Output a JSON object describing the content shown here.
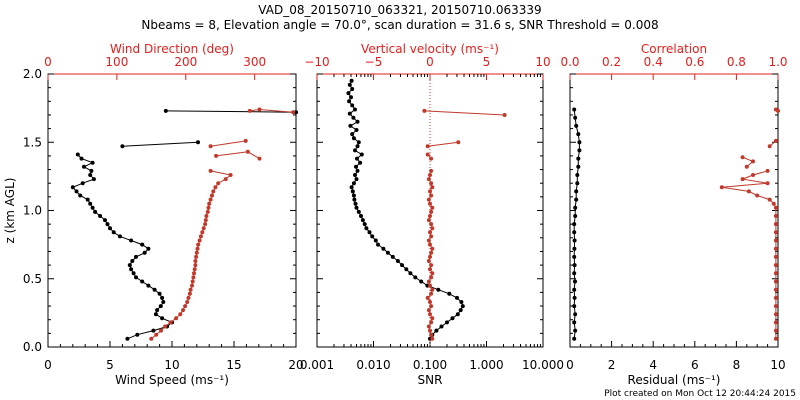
{
  "header": {
    "title_line1": "VAD_08_20150710_063321, 20150710.063339",
    "title_line2": "Nbeams = 8, Elevation angle = 70.0°, scan duration = 31.6 s, SNR Threshold = 0.008",
    "footer": "Plot created on Mon Oct 12 20:44:24 2015"
  },
  "colors": {
    "black": "#000000",
    "red": "#c0392b",
    "axis_red": "#e0201e"
  },
  "chart_data": [
    {
      "type": "line",
      "ylabel": "z (km AGL)",
      "ylim": [
        0,
        2
      ],
      "yticks": [
        "0.0",
        "0.5",
        "1.0",
        "1.5",
        "2.0"
      ],
      "bottom_axis": {
        "label": "Wind Speed (ms⁻¹)",
        "lim": [
          0,
          20
        ],
        "ticks": [
          "0",
          "5",
          "10",
          "15",
          "20"
        ]
      },
      "top_axis": {
        "label": "Wind Direction (deg)",
        "lim": [
          0,
          360
        ],
        "ticks": [
          "0",
          "100",
          "200",
          "300"
        ]
      },
      "series": [
        {
          "axis": "bottom",
          "color": "black",
          "segments": [
            {
              "z": [
                0.06,
                0.09,
                0.12,
                0.15,
                0.18,
                0.21,
                0.24,
                0.27,
                0.3,
                0.33,
                0.36,
                0.39,
                0.42,
                0.45,
                0.48,
                0.51,
                0.54,
                0.57,
                0.6,
                0.63,
                0.66,
                0.69,
                0.72,
                0.75,
                0.78,
                0.81,
                0.84,
                0.87,
                0.9,
                0.93,
                0.96,
                0.99,
                1.02,
                1.05,
                1.08,
                1.11,
                1.14,
                1.17,
                1.2,
                1.23,
                1.26,
                1.29,
                1.32,
                1.35,
                1.38,
                1.41
              ],
              "x": [
                6.4,
                7.2,
                8.5,
                9.6,
                10.0,
                9.2,
                8.7,
                8.8,
                9.1,
                9.3,
                9.2,
                9.0,
                8.6,
                8.1,
                7.6,
                7.1,
                6.9,
                6.7,
                6.6,
                6.8,
                7.1,
                7.8,
                8.1,
                7.6,
                6.7,
                5.8,
                5.3,
                5.0,
                4.8,
                4.6,
                4.2,
                3.8,
                3.6,
                3.4,
                3.2,
                2.6,
                2.3,
                2.0,
                2.8,
                3.7,
                3.4,
                3.5,
                2.9,
                3.6,
                2.7,
                2.4
              ]
            },
            {
              "z": [
                1.47,
                1.5
              ],
              "x": [
                6.0,
                12.1
              ]
            },
            {
              "z": [
                1.73,
                1.72
              ],
              "x": [
                9.5,
                20.0
              ]
            }
          ]
        },
        {
          "axis": "top",
          "color": "red",
          "segments": [
            {
              "z": [
                0.06,
                0.09,
                0.12,
                0.15,
                0.18,
                0.21,
                0.24,
                0.27,
                0.3,
                0.33,
                0.36,
                0.39,
                0.42,
                0.45,
                0.48,
                0.51,
                0.54,
                0.57,
                0.6,
                0.63,
                0.66,
                0.69,
                0.72,
                0.75,
                0.78,
                0.81,
                0.84,
                0.87,
                0.9,
                0.93,
                0.96,
                0.99,
                1.02,
                1.05,
                1.08,
                1.11,
                1.14,
                1.17,
                1.2,
                1.23,
                1.26,
                1.29
              ],
              "x": [
                150,
                157,
                164,
                170,
                178,
                186,
                192,
                196,
                199,
                202,
                204,
                206,
                207,
                209,
                210,
                211,
                212,
                213,
                214,
                214,
                215,
                216,
                217,
                218,
                220,
                222,
                224,
                226,
                228,
                229,
                230,
                232,
                233,
                234,
                236,
                238,
                240,
                243,
                247,
                258,
                265,
                236
              ]
            },
            {
              "z": [
                1.4,
                1.43,
                1.38
              ],
              "x": [
                244,
                290,
                307
              ]
            },
            {
              "z": [
                1.47,
                1.51
              ],
              "x": [
                236,
                287
              ]
            },
            {
              "z": [
                1.73,
                1.74,
                1.72
              ],
              "x": [
                293,
                307,
                356
              ]
            }
          ]
        }
      ]
    },
    {
      "type": "line",
      "bottom_axis": {
        "label": "SNR",
        "scale": "log",
        "lim": [
          0.001,
          10
        ],
        "ticks": [
          "0.001",
          "0.010",
          "0.100",
          "1.000",
          "10.000"
        ]
      },
      "top_axis": {
        "label": "Vertical velocity (ms⁻¹)",
        "lim": [
          -10,
          10
        ],
        "ticks": [
          "−10",
          "−5",
          "0",
          "5",
          "10"
        ]
      },
      "series": [
        {
          "axis": "bottom",
          "color": "black",
          "segments": [
            {
              "z": [
                0.06,
                0.09,
                0.12,
                0.15,
                0.18,
                0.21,
                0.24,
                0.27,
                0.3,
                0.33,
                0.36,
                0.39,
                0.42,
                0.45,
                0.48,
                0.51,
                0.54,
                0.57,
                0.6,
                0.63,
                0.66,
                0.69,
                0.72,
                0.75,
                0.78,
                0.81,
                0.84,
                0.87,
                0.9,
                0.93,
                0.96,
                0.99,
                1.02,
                1.05,
                1.08,
                1.11,
                1.14,
                1.17,
                1.2,
                1.23,
                1.26,
                1.29,
                1.32,
                1.35,
                1.38,
                1.41,
                1.44,
                1.47,
                1.5,
                1.53,
                1.56,
                1.59,
                1.62,
                1.65,
                1.68,
                1.71,
                1.74,
                1.77,
                1.8,
                1.83,
                1.86,
                1.89,
                1.92,
                1.95
              ],
              "x": [
                0.1,
                0.11,
                0.13,
                0.16,
                0.2,
                0.25,
                0.31,
                0.35,
                0.38,
                0.36,
                0.3,
                0.22,
                0.14,
                0.09,
                0.07,
                0.055,
                0.045,
                0.038,
                0.032,
                0.027,
                0.022,
                0.018,
                0.015,
                0.012,
                0.011,
                0.0095,
                0.0085,
                0.0075,
                0.007,
                0.0065,
                0.006,
                0.0055,
                0.005,
                0.0048,
                0.0046,
                0.0045,
                0.0043,
                0.0041,
                0.0045,
                0.005,
                0.0047,
                0.0052,
                0.0049,
                0.0058,
                0.0051,
                0.0062,
                0.0047,
                0.0052,
                0.0055,
                0.0045,
                0.0042,
                0.005,
                0.0039,
                0.0052,
                0.0044,
                0.0038,
                0.0047,
                0.0042,
                0.0037,
                0.004,
                0.0036,
                0.0042,
                0.0038,
                0.0041
              ]
            }
          ]
        },
        {
          "axis": "top",
          "color": "red",
          "segments": [
            {
              "z": [
                0.06,
                0.09,
                0.12,
                0.15,
                0.18,
                0.21,
                0.24,
                0.27,
                0.3,
                0.33,
                0.36,
                0.39,
                0.42,
                0.45,
                0.48,
                0.51,
                0.54,
                0.57,
                0.6,
                0.63,
                0.66,
                0.69,
                0.72,
                0.75,
                0.78,
                0.81,
                0.84,
                0.87,
                0.9,
                0.93,
                0.96,
                0.99,
                1.02,
                1.05,
                1.08,
                1.11,
                1.14,
                1.17,
                1.2,
                1.23,
                1.26,
                1.29
              ],
              "x": [
                0.2,
                0.1,
                0.0,
                -0.1,
                0.1,
                0.2,
                0.0,
                -0.1,
                0.1,
                0.0,
                -0.2,
                0.1,
                0.2,
                0.0,
                -0.1,
                0.1,
                0.2,
                0.0,
                0.1,
                -0.1,
                0.0,
                0.1,
                0.2,
                0.0,
                -0.1,
                0.1,
                0.0,
                0.2,
                0.1,
                -0.1,
                0.0,
                0.1,
                0.2,
                0.0,
                -0.1,
                0.1,
                0.0,
                0.2,
                0.1,
                -0.1,
                0.0,
                0.1
              ]
            },
            {
              "z": [
                1.38,
                1.41
              ],
              "x": [
                0.1,
                -0.2
              ]
            },
            {
              "z": [
                1.47,
                1.5
              ],
              "x": [
                -0.2,
                2.5
              ]
            },
            {
              "z": [
                1.73,
                1.7
              ],
              "x": [
                -0.5,
                6.6
              ]
            }
          ]
        }
      ]
    },
    {
      "type": "line",
      "bottom_axis": {
        "label": "Residual (ms⁻¹)",
        "lim": [
          0,
          10
        ],
        "ticks": [
          "0",
          "2",
          "4",
          "6",
          "8",
          "10"
        ]
      },
      "top_axis": {
        "label": "Correlation",
        "lim": [
          0,
          1
        ],
        "ticks": [
          "0.0",
          "0.2",
          "0.4",
          "0.6",
          "0.8",
          "1.0"
        ]
      },
      "series": [
        {
          "axis": "bottom",
          "color": "black",
          "segments": [
            {
              "z": [
                0.06,
                0.12,
                0.18,
                0.24,
                0.3,
                0.36,
                0.42,
                0.48,
                0.54,
                0.6,
                0.66,
                0.72,
                0.78,
                0.84,
                0.9,
                0.96,
                1.02,
                1.08,
                1.14,
                1.2,
                1.26,
                1.32,
                1.38,
                1.44,
                1.5,
                1.56,
                1.62,
                1.68,
                1.74
              ],
              "x": [
                0.2,
                0.25,
                0.2,
                0.25,
                0.2,
                0.22,
                0.2,
                0.24,
                0.2,
                0.22,
                0.2,
                0.21,
                0.22,
                0.2,
                0.2,
                0.25,
                0.25,
                0.3,
                0.3,
                0.35,
                0.35,
                0.4,
                0.4,
                0.45,
                0.45,
                0.4,
                0.3,
                0.25,
                0.2
              ]
            }
          ]
        },
        {
          "axis": "top",
          "color": "red",
          "segments": [
            {
              "z": [
                0.06,
                0.12,
                0.18,
                0.24,
                0.3,
                0.36,
                0.42,
                0.48,
                0.54,
                0.6,
                0.66,
                0.72,
                0.78,
                0.84,
                0.9,
                0.96,
                1.02,
                1.05,
                1.08,
                1.11,
                1.14,
                1.17,
                1.2,
                1.23,
                1.26,
                1.29
              ],
              "x": [
                0.99,
                0.99,
                0.99,
                0.99,
                0.99,
                0.99,
                0.99,
                0.99,
                0.99,
                0.99,
                0.99,
                0.99,
                0.99,
                0.99,
                0.99,
                0.99,
                0.99,
                0.98,
                0.96,
                0.9,
                0.86,
                0.73,
                0.95,
                0.83,
                0.88,
                0.95
              ]
            },
            {
              "z": [
                1.32,
                1.36,
                1.39
              ],
              "x": [
                0.85,
                0.88,
                0.83
              ]
            },
            {
              "z": [
                1.47,
                1.51
              ],
              "x": [
                0.96,
                0.99
              ]
            },
            {
              "z": [
                1.74,
                1.73
              ],
              "x": [
                0.99,
                1.0
              ]
            }
          ]
        }
      ]
    }
  ]
}
